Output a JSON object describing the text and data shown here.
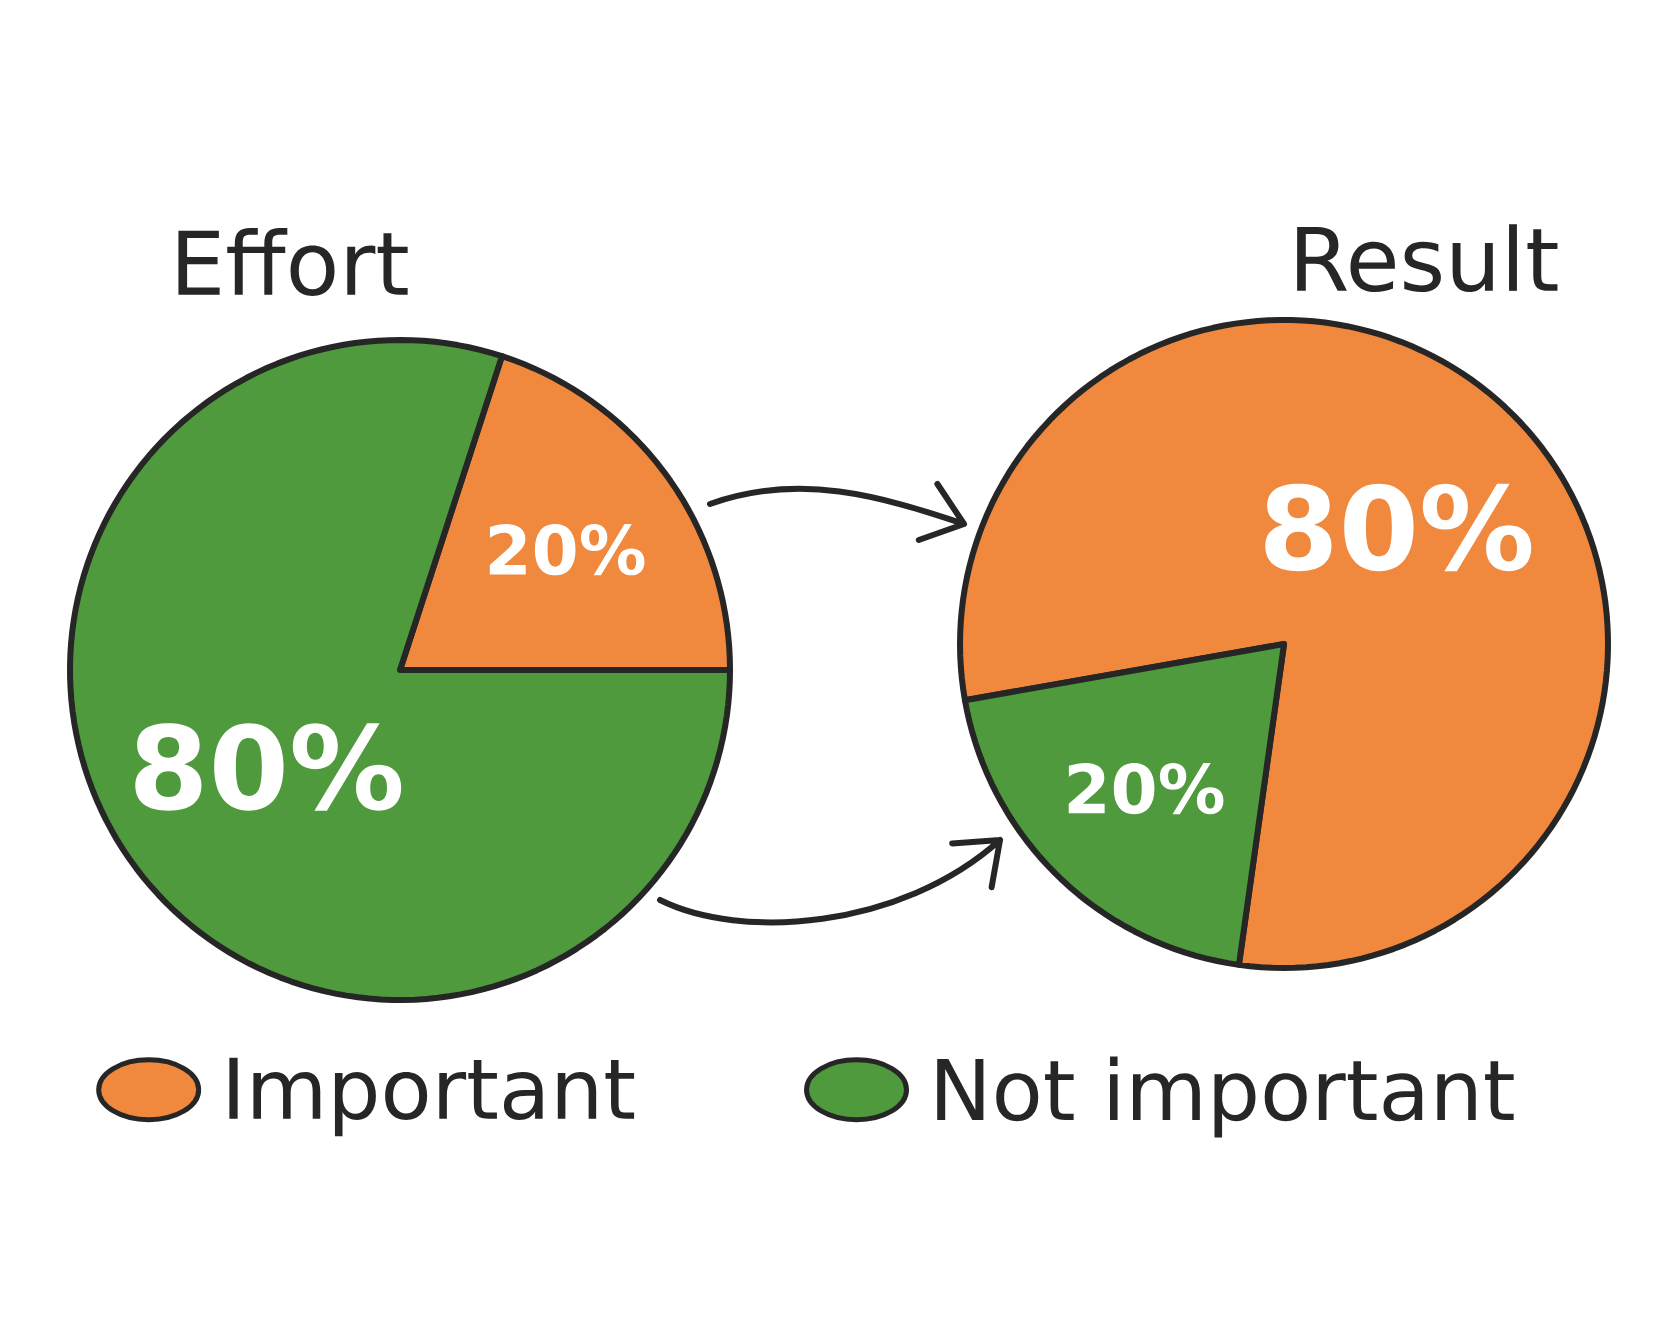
{
  "chart_data": [
    {
      "type": "pie",
      "title": "Effort",
      "categories": [
        "Important",
        "Not important"
      ],
      "values": [
        20,
        80
      ],
      "colors": [
        "#f0883e",
        "#4f9a3c"
      ],
      "value_labels": [
        "20%",
        "80%"
      ],
      "legend": "bottom"
    },
    {
      "type": "pie",
      "title": "Result",
      "categories": [
        null,
        null
      ],
      "values": [
        80,
        20
      ],
      "colors": [
        "#f0883e",
        "#4f9a3c"
      ],
      "value_labels": [
        "80%",
        "20%"
      ]
    }
  ]
}
